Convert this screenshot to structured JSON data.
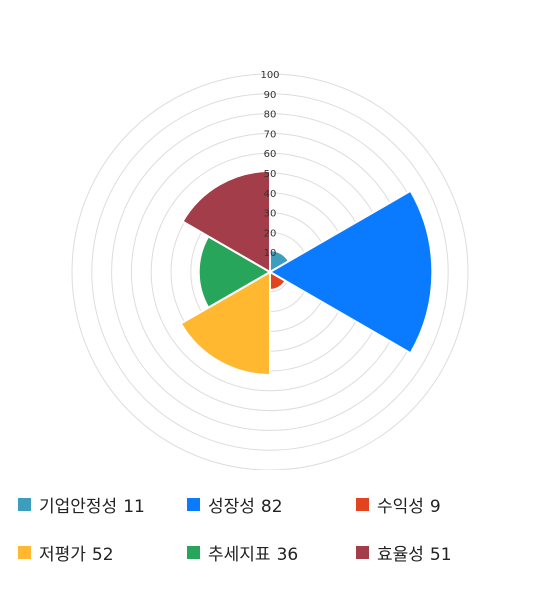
{
  "chart_data": {
    "type": "polar-area",
    "r_ticks": [
      "100",
      "90",
      "80",
      "70",
      "60",
      "50",
      "40",
      "30",
      "20",
      "10"
    ],
    "rlim": [
      0,
      100
    ],
    "grid": true,
    "legend_position": "bottom",
    "series": [
      {
        "name": "기업안정성",
        "value": 11,
        "display": "11",
        "color": "#3c9dbd"
      },
      {
        "name": "성장성",
        "value": 82,
        "display": "82",
        "color": "#0a7bff"
      },
      {
        "name": "수익성",
        "value": 9,
        "display": "9",
        "color": "#e2441f"
      },
      {
        "name": "저평가",
        "value": 52,
        "display": "52",
        "color": "#ffb830"
      },
      {
        "name": "추세지표",
        "value": 36,
        "display": "36",
        "color": "#27a55a"
      },
      {
        "name": "효율성",
        "value": 51,
        "display": "51",
        "color": "#a33d4a"
      }
    ]
  }
}
